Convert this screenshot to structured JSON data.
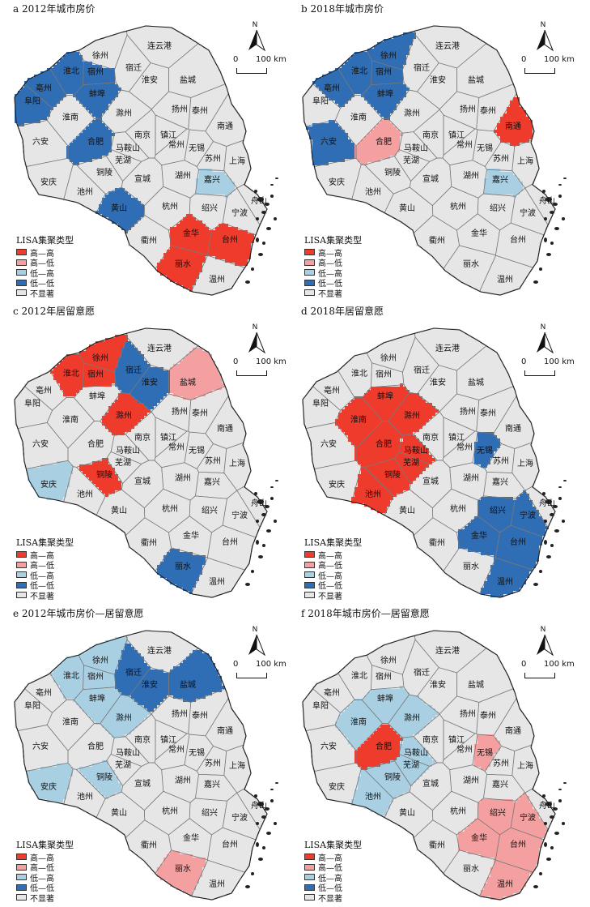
{
  "colors": {
    "HH": "#ef3b2c",
    "HL": "#f4a0a0",
    "LH": "#a9cfe3",
    "LL": "#2f6db5",
    "NS": "#e6e6e6",
    "border": "#7a7a7a"
  },
  "legend": {
    "title": "LISA集聚类型",
    "items": [
      {
        "key": "HH",
        "label": "高—高"
      },
      {
        "key": "HL",
        "label": "高—低"
      },
      {
        "key": "LH",
        "label": "低—高"
      },
      {
        "key": "LL",
        "label": "低—低"
      },
      {
        "key": "NS",
        "label": "不显著"
      }
    ]
  },
  "north_label": "N",
  "scale": {
    "zero": "0",
    "distance": "100 km"
  },
  "cities": [
    "连云港",
    "徐州",
    "宿迁",
    "淮北",
    "宿州",
    "淮安",
    "盐城",
    "亳州",
    "蚌埠",
    "阜阳",
    "扬州",
    "泰州",
    "淮南",
    "滁州",
    "南通",
    "六安",
    "合肥",
    "南京",
    "镇江",
    "马鞍山",
    "常州",
    "无锡",
    "芜湖",
    "苏州",
    "铜陵",
    "上海",
    "安庆",
    "池州",
    "宣城",
    "湖州",
    "嘉兴",
    "黄山",
    "杭州",
    "舟山",
    "绍兴",
    "宁波",
    "衢州",
    "金华",
    "台州",
    "丽水",
    "温州"
  ],
  "panels": [
    {
      "title": "a 2012年城市房价",
      "types": {
        "淮北": "LL",
        "宿州": "LL",
        "亳州": "LL",
        "阜阳": "LL",
        "蚌埠": "LL",
        "合肥": "LL",
        "黄山": "LL",
        "嘉兴": "LH",
        "金华": "HH",
        "台州": "HH",
        "丽水": "HH"
      }
    },
    {
      "title": "b 2018年城市房价",
      "types": {
        "徐州": "LL",
        "淮北": "LL",
        "宿州": "LL",
        "亳州": "LL",
        "蚌埠": "LL",
        "六安": "LL",
        "合肥": "HL",
        "南通": "HH",
        "嘉兴": "LH"
      }
    },
    {
      "title": "c 2012年居留意愿",
      "types": {
        "徐州": "HH",
        "淮北": "HH",
        "宿州": "HH",
        "宿迁": "LL",
        "淮安": "LL",
        "盐城": "HL",
        "滁州": "HH",
        "铜陵": "HH",
        "安庆": "LH",
        "丽水": "LL"
      }
    },
    {
      "title": "d 2018年居留意愿",
      "types": {
        "蚌埠": "HH",
        "淮南": "HH",
        "滁州": "HH",
        "合肥": "HH",
        "马鞍山": "HH",
        "芜湖": "HH",
        "铜陵": "HH",
        "池州": "HH",
        "无锡": "LL",
        "绍兴": "LL",
        "宁波": "LL",
        "金华": "LL",
        "台州": "LL",
        "温州": "LL"
      }
    },
    {
      "title": "e 2012年城市房价—居留意愿",
      "types": {
        "徐州": "LH",
        "淮北": "LH",
        "宿州": "LH",
        "宿迁": "LL",
        "淮安": "LL",
        "盐城": "LL",
        "蚌埠": "LH",
        "滁州": "LH",
        "铜陵": "LH",
        "安庆": "LH",
        "丽水": "HL"
      }
    },
    {
      "title": "f 2018年城市房价—居留意愿",
      "types": {
        "蚌埠": "LH",
        "淮南": "LH",
        "滁州": "LH",
        "马鞍山": "LH",
        "芜湖": "LH",
        "铜陵": "LH",
        "池州": "LH",
        "合肥": "HH",
        "无锡": "HL",
        "绍兴": "HL",
        "宁波": "HL",
        "金华": "HL",
        "台州": "HL",
        "温州": "HL"
      }
    }
  ]
}
